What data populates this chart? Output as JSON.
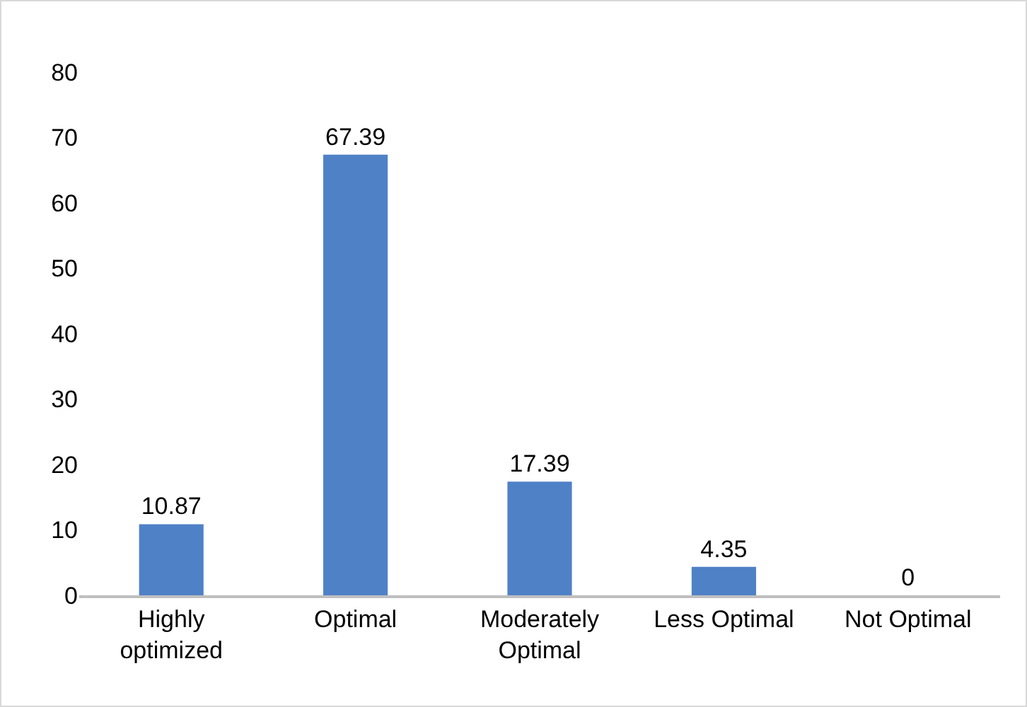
{
  "chart_data": {
    "type": "bar",
    "categories": [
      "Highly optimized",
      "Optimal",
      "Moderately Optimal",
      "Less Optimal",
      "Not Optimal"
    ],
    "values": [
      10.87,
      67.39,
      17.39,
      4.35,
      0
    ],
    "color": "#4f81c7",
    "ylim": [
      0,
      80
    ],
    "yticks": [
      0,
      10,
      20,
      30,
      40,
      50,
      60,
      70,
      80
    ],
    "grid": false,
    "legend": false,
    "data_labels": true
  }
}
